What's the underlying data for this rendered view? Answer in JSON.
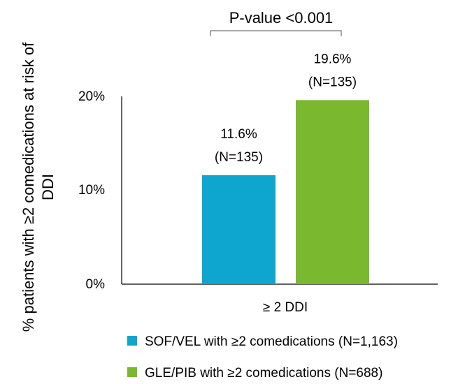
{
  "chart_data": {
    "type": "bar",
    "title": "P-value <0.001",
    "ylabel": "% patients with ≥2 comedications at risk of DDI",
    "xlabel": "",
    "categories": [
      "≥ 2 DDI"
    ],
    "ylim": [
      0,
      20
    ],
    "yticks": [
      "0%",
      "10%",
      "20%"
    ],
    "series": [
      {
        "name": "SOF/VEL with ≥2 comedications (N=1,163)",
        "values": [
          11.6
        ],
        "value_label": "11.6%",
        "n_label": "(N=135)",
        "color": "#0ea5cf"
      },
      {
        "name": "GLE/PIB with ≥2 comedications (N=688)",
        "values": [
          19.6
        ],
        "value_label": "19.6%",
        "n_label": "(N=135)",
        "color": "#7ab82f"
      }
    ],
    "legend_position": "bottom",
    "grid": false
  }
}
